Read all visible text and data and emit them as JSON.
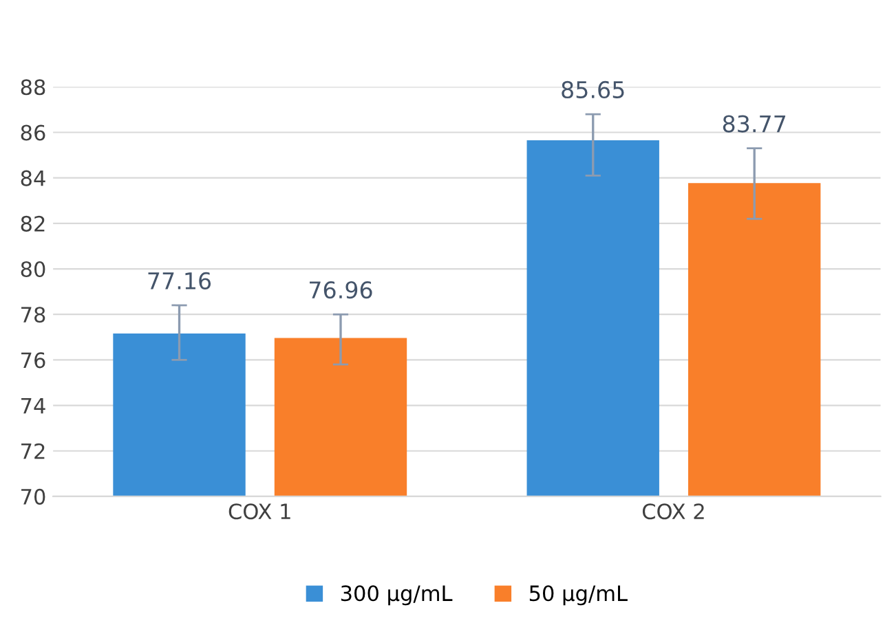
{
  "chart_data": {
    "type": "bar",
    "categories": [
      "COX 1",
      "COX 2"
    ],
    "series": [
      {
        "name": "300 µg/mL",
        "color": "#3a8fd6",
        "values": [
          77.16,
          85.65
        ],
        "errors": [
          [
            76.0,
            78.4
          ],
          [
            84.1,
            86.8
          ]
        ]
      },
      {
        "name": "50 µg/mL",
        "color": "#f97f2a",
        "values": [
          76.96,
          83.77
        ],
        "errors": [
          [
            75.8,
            78.0
          ],
          [
            82.2,
            85.3
          ]
        ]
      }
    ],
    "ylim": [
      70,
      88
    ],
    "yticks": [
      70,
      72,
      74,
      76,
      78,
      80,
      82,
      84,
      86,
      88
    ],
    "grid": "y",
    "legend": "bottom",
    "data_labels": true
  }
}
